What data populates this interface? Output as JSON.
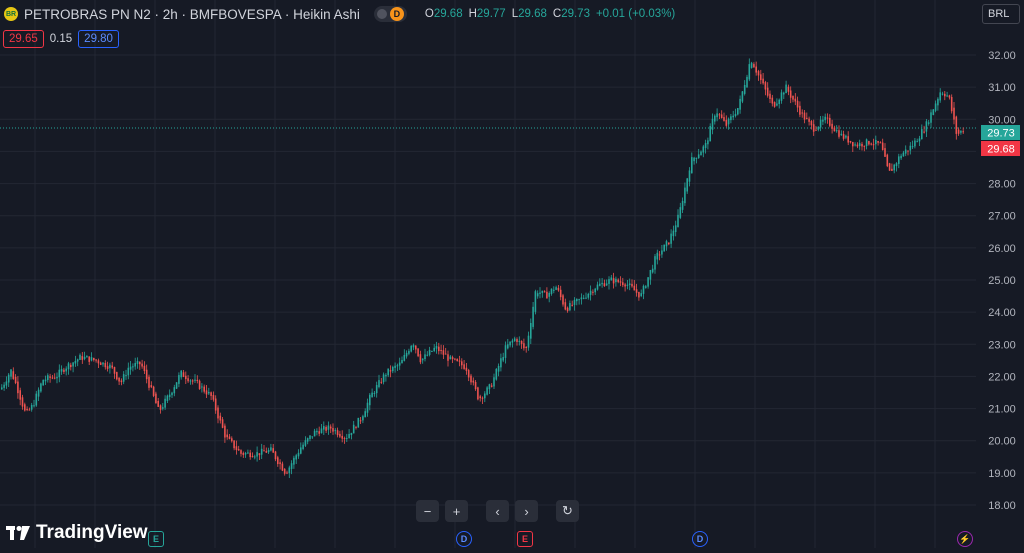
{
  "header": {
    "logo_text": "BR",
    "title": "PETROBRAS PN N2 · 2h · BMFBOVESPA · Heikin Ashi",
    "pill_badge": "D",
    "ohlc": {
      "o_label": "O",
      "o_value": "29.68",
      "h_label": "H",
      "h_value": "29.77",
      "l_label": "L",
      "l_value": "29.68",
      "c_label": "C",
      "c_value": "29.73",
      "change": "+0.01 (+0.03%)"
    }
  },
  "bid_ask": {
    "bid": "29.65",
    "spread": "0.15",
    "ask": "29.80"
  },
  "currency": "BRL",
  "price_tags": {
    "current": "29.73",
    "previous": "29.68"
  },
  "navigation": {
    "zoom_out": "−",
    "zoom_in": "+",
    "scroll_left": "‹",
    "scroll_right": "›",
    "reset": "↻"
  },
  "branding": {
    "name": "TradingView"
  },
  "events": {
    "e1": "E",
    "d1": "D",
    "e2": "E",
    "d2": "D",
    "bolt": "⚡"
  },
  "colors": {
    "background": "#161a25",
    "up": "#26a69a",
    "down": "#ef5350",
    "grid": "#232733",
    "axis_text": "#b2b5be"
  },
  "chart_data": {
    "type": "candlestick",
    "style": "Heikin Ashi",
    "y_range": [
      18,
      32
    ],
    "y_ticks": [
      "32.00",
      "31.00",
      "30.00",
      "29.00",
      "28.00",
      "27.00",
      "26.00",
      "25.00",
      "24.00",
      "23.00",
      "22.00",
      "21.00",
      "20.00",
      "19.00",
      "18.00"
    ],
    "current_price": 29.73,
    "series": [
      {
        "name": "PETROBRAS PN N2",
        "path": [
          [
            0,
            21.6
          ],
          [
            10,
            22.2
          ],
          [
            18,
            21.5
          ],
          [
            25,
            20.8
          ],
          [
            32,
            21.1
          ],
          [
            42,
            21.9
          ],
          [
            55,
            22.0
          ],
          [
            65,
            22.3
          ],
          [
            80,
            22.6
          ],
          [
            95,
            22.5
          ],
          [
            110,
            22.3
          ],
          [
            120,
            21.8
          ],
          [
            128,
            22.3
          ],
          [
            140,
            22.4
          ],
          [
            150,
            21.6
          ],
          [
            158,
            20.9
          ],
          [
            168,
            21.4
          ],
          [
            180,
            22.1
          ],
          [
            195,
            21.8
          ],
          [
            210,
            21.4
          ],
          [
            225,
            20.1
          ],
          [
            240,
            19.6
          ],
          [
            255,
            19.6
          ],
          [
            270,
            19.7
          ],
          [
            285,
            19.0
          ],
          [
            300,
            19.8
          ],
          [
            315,
            20.3
          ],
          [
            330,
            20.4
          ],
          [
            345,
            20.1
          ],
          [
            360,
            20.7
          ],
          [
            370,
            21.4
          ],
          [
            385,
            22.1
          ],
          [
            400,
            22.4
          ],
          [
            412,
            23.1
          ],
          [
            420,
            22.5
          ],
          [
            435,
            22.9
          ],
          [
            450,
            22.5
          ],
          [
            465,
            22.3
          ],
          [
            478,
            21.3
          ],
          [
            490,
            21.7
          ],
          [
            505,
            22.9
          ],
          [
            515,
            23.2
          ],
          [
            525,
            22.8
          ],
          [
            535,
            24.7
          ],
          [
            545,
            24.5
          ],
          [
            555,
            24.8
          ],
          [
            565,
            24.1
          ],
          [
            580,
            24.4
          ],
          [
            595,
            24.8
          ],
          [
            610,
            25.0
          ],
          [
            625,
            24.9
          ],
          [
            640,
            24.5
          ],
          [
            655,
            25.7
          ],
          [
            668,
            26.2
          ],
          [
            678,
            27.0
          ],
          [
            690,
            28.7
          ],
          [
            705,
            29.2
          ],
          [
            715,
            30.3
          ],
          [
            725,
            29.8
          ],
          [
            738,
            30.4
          ],
          [
            750,
            31.9
          ],
          [
            760,
            31.2
          ],
          [
            772,
            30.4
          ],
          [
            785,
            31.0
          ],
          [
            800,
            30.2
          ],
          [
            812,
            29.7
          ],
          [
            825,
            30.0
          ],
          [
            840,
            29.5
          ],
          [
            855,
            29.2
          ],
          [
            870,
            29.3
          ],
          [
            880,
            29.2
          ],
          [
            888,
            28.3
          ],
          [
            900,
            28.9
          ],
          [
            912,
            29.2
          ],
          [
            925,
            29.8
          ],
          [
            940,
            30.9
          ],
          [
            948,
            30.7
          ],
          [
            956,
            29.5
          ],
          [
            964,
            29.73
          ]
        ]
      }
    ]
  }
}
